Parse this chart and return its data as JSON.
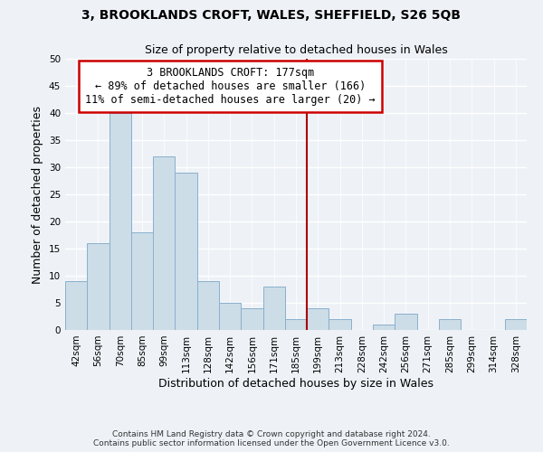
{
  "title": "3, BROOKLANDS CROFT, WALES, SHEFFIELD, S26 5QB",
  "subtitle": "Size of property relative to detached houses in Wales",
  "xlabel": "Distribution of detached houses by size in Wales",
  "ylabel": "Number of detached properties",
  "bar_labels": [
    "42sqm",
    "56sqm",
    "70sqm",
    "85sqm",
    "99sqm",
    "113sqm",
    "128sqm",
    "142sqm",
    "156sqm",
    "171sqm",
    "185sqm",
    "199sqm",
    "213sqm",
    "228sqm",
    "242sqm",
    "256sqm",
    "271sqm",
    "285sqm",
    "299sqm",
    "314sqm",
    "328sqm"
  ],
  "bar_values": [
    9,
    16,
    40,
    18,
    32,
    29,
    9,
    5,
    4,
    8,
    2,
    4,
    2,
    0,
    1,
    3,
    0,
    2,
    0,
    0,
    2
  ],
  "bar_color": "#ccdde8",
  "bar_edge_color": "#8ab0cc",
  "vline_x": 10.5,
  "vline_color": "#aa0000",
  "ylim": [
    0,
    50
  ],
  "yticks": [
    0,
    5,
    10,
    15,
    20,
    25,
    30,
    35,
    40,
    45,
    50
  ],
  "annotation_title": "3 BROOKLANDS CROFT: 177sqm",
  "annotation_line1": "← 89% of detached houses are smaller (166)",
  "annotation_line2": "11% of semi-detached houses are larger (20) →",
  "annotation_box_color": "#ffffff",
  "annotation_box_edge": "#cc0000",
  "footer1": "Contains HM Land Registry data © Crown copyright and database right 2024.",
  "footer2": "Contains public sector information licensed under the Open Government Licence v3.0.",
  "background_color": "#eef2f7",
  "grid_color": "#ffffff",
  "title_fontsize": 10,
  "subtitle_fontsize": 9,
  "axis_label_fontsize": 9,
  "tick_fontsize": 7.5,
  "annotation_fontsize": 8.5,
  "footer_fontsize": 6.5
}
